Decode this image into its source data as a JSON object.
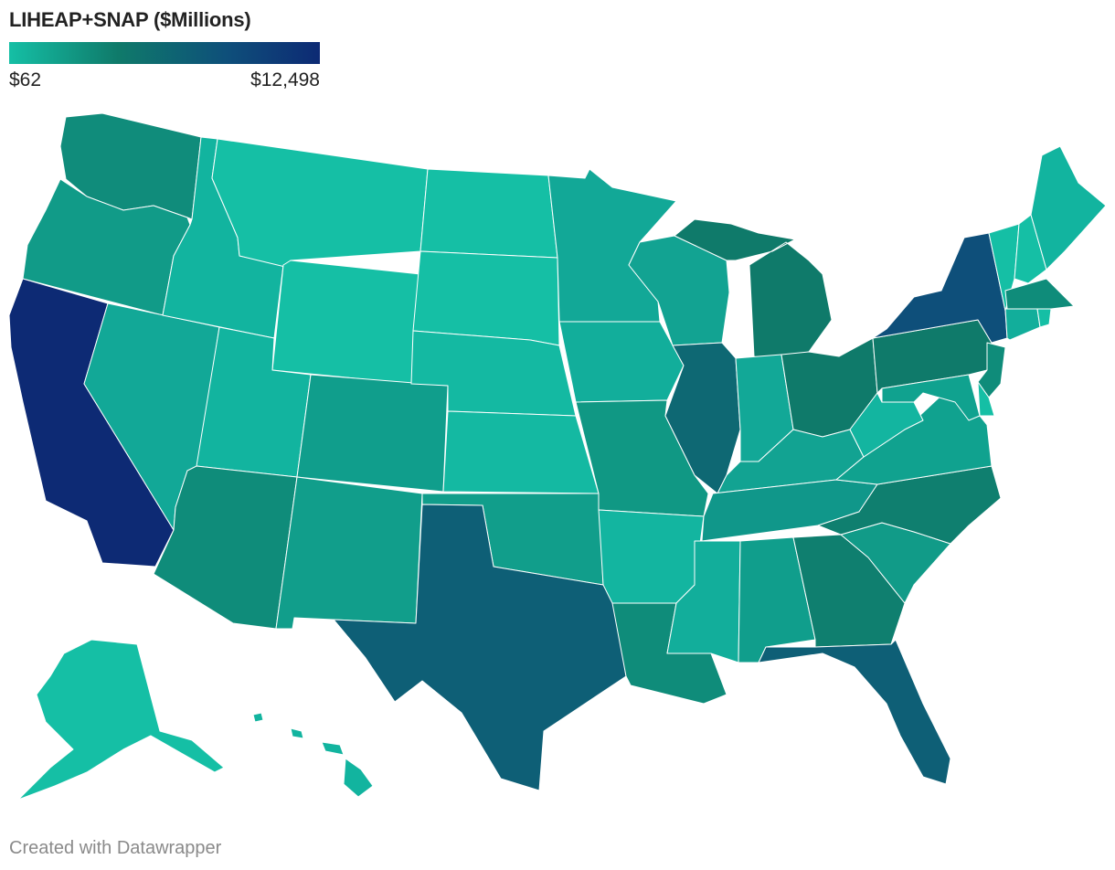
{
  "title": "LIHEAP+SNAP ($Millions)",
  "legend": {
    "min_label": "$62",
    "max_label": "$12,498",
    "min_value": 62,
    "max_value": 12498,
    "gradient_colors": [
      "#15bfa5",
      "#0f7a6a",
      "#0e4f7a",
      "#0d2a74"
    ]
  },
  "footer": "Created with Datawrapper",
  "map_data": {
    "type": "choropleth",
    "unit": "$Millions",
    "state_colors": {
      "CA": "#0d2a74",
      "NY": "#0e4f7a",
      "TX": "#0e5f76",
      "FL": "#0e5f76",
      "OR": "#119b88",
      "WA": "#108c7b",
      "NV": "#12a897",
      "ID": "#12b49f",
      "MT": "#15bfa5",
      "WY": "#15bfa5",
      "UT": "#12b49f",
      "AZ": "#0f8c7a",
      "CO": "#109e8c",
      "NM": "#119e8b",
      "ND": "#15bfa5",
      "SD": "#15bfa5",
      "NE": "#14b9a2",
      "KS": "#14b9a2",
      "OK": "#119e8b",
      "MN": "#12a897",
      "IA": "#12ae9b",
      "MO": "#109884",
      "AR": "#13b5a0",
      "LA": "#0f8c7a",
      "WI": "#12a392",
      "IL": "#0e6873",
      "MI": "#0f7a6a",
      "IN": "#12a897",
      "OH": "#0f7a6a",
      "KY": "#12a392",
      "TN": "#10978a",
      "MS": "#12ae9b",
      "AL": "#109e8c",
      "GA": "#0f7f6f",
      "SC": "#119b88",
      "NC": "#0f7f6f",
      "VA": "#10a28f",
      "WV": "#13b5a0",
      "PA": "#0f7a6a",
      "NJ": "#0f8c7a",
      "DE": "#15bfa5",
      "MD": "#10a28f",
      "CT": "#12ae9b",
      "RI": "#15bfa5",
      "MA": "#0f8c7a",
      "VT": "#15bfa5",
      "NH": "#15bfa5",
      "ME": "#12b49f",
      "AK": "#15bfa5",
      "HI": "#12b49f",
      "DC": "#15bfa5"
    }
  }
}
